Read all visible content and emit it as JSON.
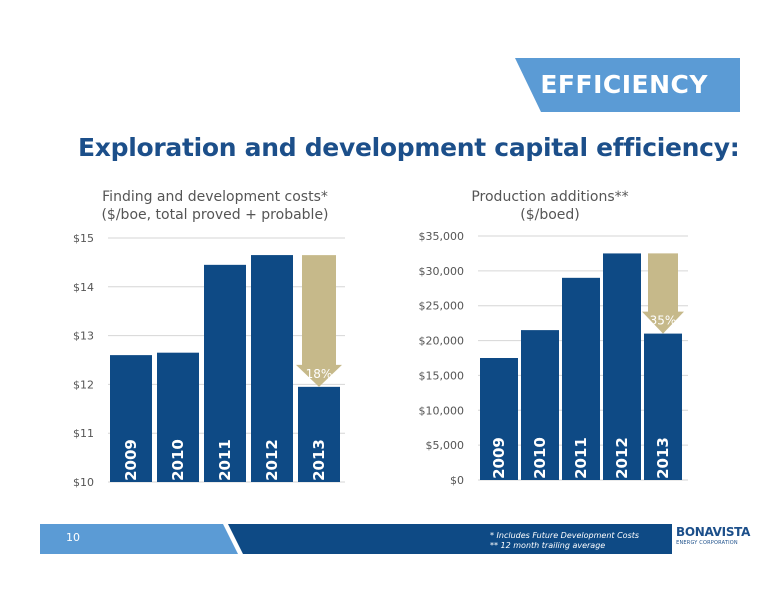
{
  "header": {
    "banner_label": "EFFICIENCY",
    "title": "Exploration and development capital efficiency:"
  },
  "colors": {
    "bar": "#0e4a85",
    "arrow": "#c6b98a",
    "banner": "#5b9bd5",
    "title": "#1c4f8a",
    "footer_dark": "#0e4a85"
  },
  "chart_data": [
    {
      "type": "bar",
      "title_line1": "Finding and development costs*",
      "title_line2": "($/boe, total proved + probable)",
      "categories": [
        "2009",
        "2010",
        "2011",
        "2012",
        "2013"
      ],
      "values": [
        12.6,
        12.65,
        14.45,
        14.65,
        11.95
      ],
      "ylim": [
        10,
        15
      ],
      "yticks": [
        10,
        11,
        12,
        13,
        14,
        15
      ],
      "ytick_labels": [
        "$10",
        "$11",
        "$12",
        "$13",
        "$14",
        "$15"
      ],
      "grid": true,
      "annotation": {
        "label": "18%",
        "from": 14.65,
        "to": 11.95,
        "category": "2013"
      }
    },
    {
      "type": "bar",
      "title_line1": "Production additions**",
      "title_line2": "($/boed)",
      "categories": [
        "2009",
        "2010",
        "2011",
        "2012",
        "2013"
      ],
      "values": [
        17500,
        21500,
        29000,
        32500,
        21000
      ],
      "ylim": [
        0,
        35000
      ],
      "yticks": [
        0,
        5000,
        10000,
        15000,
        20000,
        25000,
        30000,
        35000
      ],
      "ytick_labels": [
        "$0",
        "$5,000",
        "$10,000",
        "$15,000",
        "$20,000",
        "$25,000",
        "$30,000",
        "$35,000"
      ],
      "grid": true,
      "annotation": {
        "label": "35%",
        "from": 32500,
        "to": 21000,
        "category": "2013"
      }
    }
  ],
  "footer": {
    "page_number": "10",
    "footnote1": "* Includes Future Development Costs",
    "footnote2": "** 12 month trailing average",
    "logo_main": "BONAVISTA",
    "logo_sub": "ENERGY CORPORATION"
  }
}
